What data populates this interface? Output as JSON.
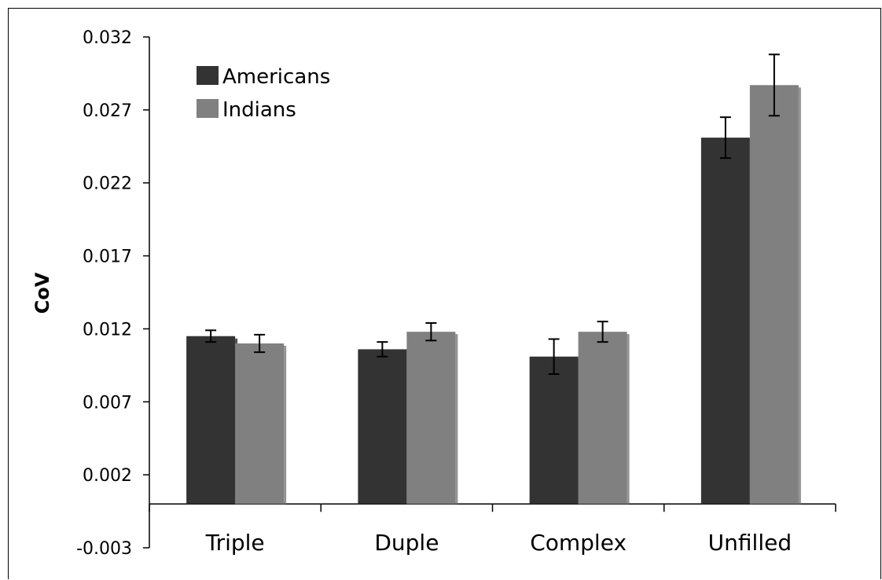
{
  "chart_data": {
    "type": "bar",
    "title": "",
    "xlabel": "",
    "ylabel": "CoV",
    "ylim": [
      -0.003,
      0.032
    ],
    "yticks": [
      "0.032",
      "0.027",
      "0.022",
      "0.017",
      "0.012",
      "0.007",
      "0.002",
      "-0.003"
    ],
    "ytick_values": [
      0.032,
      0.027,
      0.022,
      0.017,
      0.012,
      0.007,
      0.002,
      -0.003
    ],
    "grid": false,
    "legend_position": "top-left",
    "categories": [
      "Triple",
      "Duple",
      "Complex",
      "Unfilled"
    ],
    "series": [
      {
        "name": "Americans",
        "color": "#333333",
        "values": [
          0.0115,
          0.0106,
          0.0101,
          0.0251
        ],
        "error": [
          0.0004,
          0.0005,
          0.0012,
          0.0014
        ]
      },
      {
        "name": "Indians",
        "color": "#808080",
        "values": [
          0.011,
          0.0118,
          0.0118,
          0.0287
        ],
        "error": [
          0.0006,
          0.0006,
          0.0007,
          0.0021
        ]
      }
    ]
  }
}
